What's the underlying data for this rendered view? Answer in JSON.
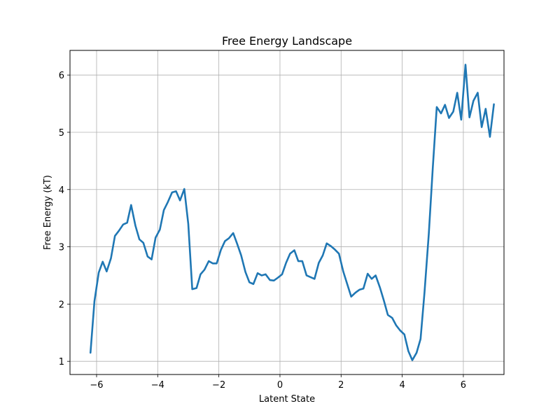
{
  "chart_data": {
    "type": "line",
    "title": "Free Energy Landscape",
    "xlabel": "Latent State",
    "ylabel": "Free Energy (kT)",
    "xlim": [
      -6.87,
      7.33
    ],
    "ylim": [
      0.77,
      6.43
    ],
    "grid": true,
    "xticks": [
      -6,
      -4,
      -2,
      0,
      2,
      4,
      6
    ],
    "xtick_labels": [
      "−6",
      "−4",
      "−2",
      "0",
      "2",
      "4",
      "6"
    ],
    "yticks": [
      1,
      2,
      3,
      4,
      5,
      6
    ],
    "ytick_labels": [
      "1",
      "2",
      "3",
      "4",
      "5",
      "6"
    ],
    "series": [
      {
        "color": "#1f77b4",
        "x": [
          -6.2,
          -6.07,
          -5.93,
          -5.8,
          -5.67,
          -5.53,
          -5.4,
          -5.27,
          -5.13,
          -5.0,
          -4.87,
          -4.73,
          -4.6,
          -4.47,
          -4.33,
          -4.2,
          -4.07,
          -3.93,
          -3.8,
          -3.67,
          -3.53,
          -3.4,
          -3.27,
          -3.13,
          -3.0,
          -2.87,
          -2.73,
          -2.6,
          -2.47,
          -2.33,
          -2.2,
          -2.07,
          -1.93,
          -1.8,
          -1.67,
          -1.53,
          -1.4,
          -1.27,
          -1.13,
          -1.0,
          -0.87,
          -0.73,
          -0.6,
          -0.47,
          -0.33,
          -0.2,
          -0.07,
          0.07,
          0.2,
          0.33,
          0.47,
          0.6,
          0.73,
          0.87,
          1.0,
          1.13,
          1.27,
          1.4,
          1.53,
          1.67,
          1.8,
          1.93,
          2.07,
          2.2,
          2.33,
          2.47,
          2.6,
          2.73,
          2.87,
          3.0,
          3.13,
          3.27,
          3.4,
          3.53,
          3.67,
          3.8,
          3.93,
          4.07,
          4.2,
          4.33,
          4.47,
          4.6,
          4.73,
          4.87,
          5.0,
          5.13,
          5.27,
          5.4,
          5.53,
          5.67,
          5.8,
          5.93,
          6.07,
          6.2,
          6.33,
          6.47,
          6.6,
          6.73,
          6.87,
          7.0
        ],
        "y": [
          1.15,
          2.05,
          2.55,
          2.74,
          2.57,
          2.8,
          3.19,
          3.28,
          3.39,
          3.42,
          3.73,
          3.37,
          3.13,
          3.07,
          2.83,
          2.78,
          3.16,
          3.3,
          3.64,
          3.78,
          3.95,
          3.97,
          3.81,
          4.01,
          3.4,
          2.26,
          2.28,
          2.52,
          2.6,
          2.75,
          2.71,
          2.71,
          2.95,
          3.1,
          3.15,
          3.24,
          3.05,
          2.85,
          2.56,
          2.38,
          2.35,
          2.54,
          2.5,
          2.52,
          2.42,
          2.41,
          2.46,
          2.52,
          2.72,
          2.88,
          2.94,
          2.75,
          2.75,
          2.5,
          2.47,
          2.44,
          2.72,
          2.85,
          3.06,
          3.01,
          2.95,
          2.88,
          2.57,
          2.35,
          2.13,
          2.2,
          2.25,
          2.27,
          2.53,
          2.44,
          2.5,
          2.29,
          2.06,
          1.81,
          1.76,
          1.63,
          1.54,
          1.47,
          1.18,
          1.02,
          1.15,
          1.39,
          2.21,
          3.23,
          4.38,
          5.44,
          5.33,
          5.48,
          5.25,
          5.36,
          5.69,
          5.22,
          6.18,
          5.26,
          5.55,
          5.69,
          5.09,
          5.41,
          4.92,
          5.49
        ]
      }
    ]
  }
}
